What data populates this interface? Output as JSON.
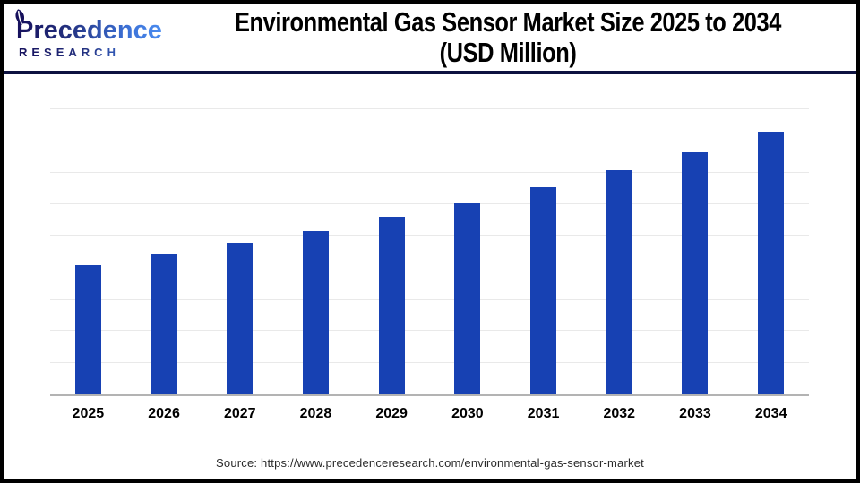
{
  "header": {
    "brand": {
      "name": "Precedence",
      "subtitle": "RESEARCH",
      "leaf_icon": "leaf-icon"
    },
    "title_line1": "Environmental Gas Sensor Market Size 2025 to 2034",
    "title_line2": "(USD Million)"
  },
  "chart_data": {
    "type": "bar",
    "title": "Environmental Gas Sensor Market Size 2025 to 2034 (USD Million)",
    "unit": "USD Million",
    "categories": [
      "2025",
      "2026",
      "2027",
      "2028",
      "2029",
      "2030",
      "2031",
      "2032",
      "2033",
      "2034"
    ],
    "values": [
      2050,
      2210,
      2390,
      2580,
      2800,
      3020,
      3270,
      3540,
      3820,
      4130
    ],
    "values_estimated": true,
    "ylim": [
      0,
      4500
    ],
    "gridline_step": 500,
    "grid": "horizontal",
    "legend": "none",
    "y_axis_labels_shown": false,
    "data_labels_shown": false,
    "bar_color": "#1741b3"
  },
  "footer": {
    "source": "Source: https://www.precedenceresearch.com/environmental-gas-sensor-market"
  },
  "colors": {
    "bar": "#1741b3",
    "axis_line": "#b3b3b3",
    "gridline": "#e9e9e9",
    "header_divider": "#0d1240",
    "frame": "#000000",
    "brand_dark": "#16105c",
    "brand_light": "#4a8cf0",
    "title_text": "#000000"
  }
}
